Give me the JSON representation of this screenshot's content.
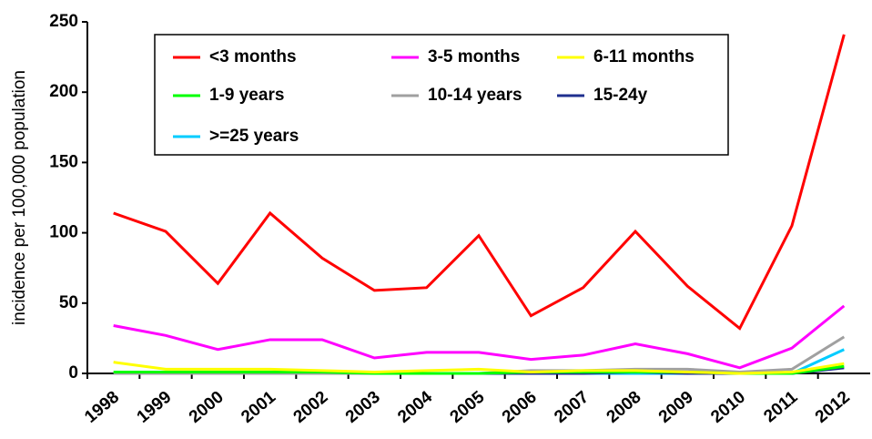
{
  "chart_data": {
    "type": "line",
    "y_label": "incidence per 100,000 population",
    "categories": [
      "1998",
      "1999",
      "2000",
      "2001",
      "2002",
      "2003",
      "2004",
      "2005",
      "2006",
      "2007",
      "2008",
      "2009",
      "2010",
      "2011",
      "2012"
    ],
    "series": [
      {
        "name": "<3 months",
        "color": "#ff0000",
        "values": [
          114,
          101,
          64,
          114,
          82,
          59,
          61,
          98,
          41,
          61,
          101,
          62,
          32,
          105,
          241
        ]
      },
      {
        "name": "3-5 months",
        "color": "#ff00ff",
        "values": [
          34,
          27,
          17,
          24,
          24,
          11,
          15,
          15,
          10,
          13,
          21,
          14,
          4,
          18,
          48
        ]
      },
      {
        "name": "6-11 months",
        "color": "#ffff00",
        "values": [
          8,
          3,
          3,
          3,
          2,
          1,
          2,
          3,
          1,
          2,
          2,
          1,
          0,
          1,
          7
        ]
      },
      {
        "name": "1-9 years",
        "color": "#00ff00",
        "values": [
          1,
          1,
          1,
          1,
          1,
          0,
          0,
          0,
          1,
          1,
          1,
          1,
          0,
          0,
          5
        ]
      },
      {
        "name": "10-14 years",
        "color": "#a0a0a0",
        "values": [
          0,
          0,
          0,
          0,
          0,
          0,
          0,
          0,
          2,
          2,
          3,
          3,
          1,
          3,
          26
        ]
      },
      {
        "name": "15-24y",
        "color": "#1f2f8f",
        "values": [
          0,
          0,
          0,
          0,
          0,
          0,
          0,
          0,
          0,
          0,
          1,
          0,
          0,
          0,
          4
        ]
      },
      {
        "name": ">=25 years",
        "color": "#00ccff",
        "values": [
          0,
          0,
          0,
          0,
          0,
          0,
          0,
          0,
          0,
          0,
          0,
          0,
          0,
          0,
          17
        ]
      }
    ],
    "ylim": [
      0,
      250
    ],
    "yticks": [
      0,
      50,
      100,
      150,
      200,
      250
    ],
    "grid": false
  }
}
